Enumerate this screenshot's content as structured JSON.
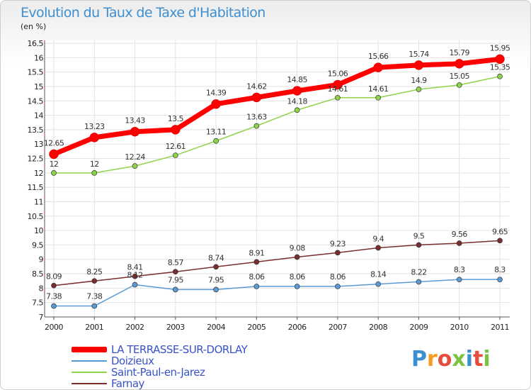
{
  "title": "Evolution du Taux de Taxe d'Habitation",
  "subtitle": "(en %)",
  "logo": "Proxiti",
  "chart_data": {
    "type": "line",
    "categories": [
      "2000",
      "2001",
      "2002",
      "2003",
      "2004",
      "2005",
      "2006",
      "2007",
      "2008",
      "2009",
      "2010",
      "2011"
    ],
    "ylim": [
      7,
      16.5
    ],
    "yticks": [
      "7",
      "7.5",
      "8",
      "8.5",
      "9",
      "9.5",
      "10",
      "10.5",
      "11",
      "11.5",
      "12",
      "12.5",
      "13",
      "13.5",
      "14",
      "14.5",
      "15",
      "15.5",
      "16",
      "16.5"
    ],
    "grid": true,
    "legend_position": "bottom-left",
    "series": [
      {
        "name": "LA TERRASSE-SUR-DORLAY",
        "color": "#ff0000",
        "values": [
          12.65,
          13.23,
          13.43,
          13.5,
          14.39,
          14.62,
          14.85,
          15.06,
          15.66,
          15.74,
          15.79,
          15.95
        ],
        "labels": [
          "12.65",
          "13.23",
          "13.43",
          "13.5",
          "14.39",
          "14.62",
          "14.85",
          "15.06",
          "15.66",
          "15.74",
          "15.79",
          "15.95"
        ]
      },
      {
        "name": "Doizieux",
        "color": "#5b9bd5",
        "values": [
          7.38,
          7.38,
          8.12,
          7.95,
          7.95,
          8.06,
          8.06,
          8.06,
          8.14,
          8.22,
          8.3,
          8.3
        ],
        "labels": [
          "7.38",
          "7.38",
          "8.12",
          "7.95",
          "7.95",
          "8.06",
          "8.06",
          "8.06",
          "8.14",
          "8.22",
          "8.3",
          "8.3"
        ]
      },
      {
        "name": "Saint-Paul-en-Jarez",
        "color": "#8fd34a",
        "values": [
          12,
          12,
          12.24,
          12.61,
          13.11,
          13.63,
          14.18,
          14.61,
          14.61,
          14.9,
          15.05,
          15.35
        ],
        "labels": [
          "12",
          "12",
          "12.24",
          "12.61",
          "13.11",
          "13.63",
          "14.18",
          "14.61",
          "14.61",
          "14.9",
          "15.05",
          "15.35"
        ]
      },
      {
        "name": "Farnay",
        "color": "#7a2e2e",
        "values": [
          8.09,
          8.25,
          8.41,
          8.57,
          8.74,
          8.91,
          9.08,
          9.23,
          9.4,
          9.5,
          9.56,
          9.65
        ],
        "labels": [
          "8.09",
          "8.25",
          "8.41",
          "8.57",
          "8.74",
          "8.91",
          "9.08",
          "9.23",
          "9.4",
          "9.5",
          "9.56",
          "9.65"
        ]
      }
    ]
  }
}
